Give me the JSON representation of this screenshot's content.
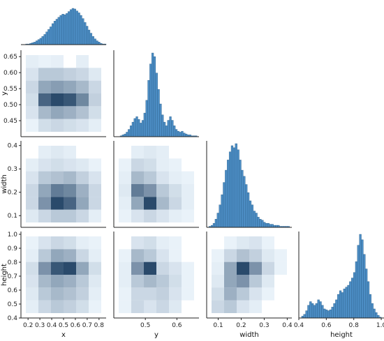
{
  "chart_data": {
    "type": "pairplot",
    "variables": [
      "x",
      "y",
      "width",
      "height"
    ],
    "colors": {
      "bar_fill": "#4c8dc4",
      "bar_edge": "#2b5f8a",
      "heat_low": "#cfe4f7",
      "heat_high": "#2a4a6b"
    },
    "grid": false,
    "axes": {
      "x": {
        "label": "x",
        "lim": [
          0.14,
          0.86
        ],
        "ticks": [
          "0.2",
          "0.3",
          "0.4",
          "0.5",
          "0.6",
          "0.7",
          "0.8"
        ]
      },
      "y": {
        "label": "y",
        "lim": [
          0.4,
          0.67
        ],
        "ticks": [
          "0.45",
          "0.50",
          "0.55",
          "0.60",
          "0.65"
        ],
        "x_ticks": [
          "0.5",
          "0.6"
        ]
      },
      "width": {
        "label": "width",
        "lim": [
          0.05,
          0.42
        ],
        "ticks": [
          "0.1",
          "0.2",
          "0.3",
          "0.4"
        ]
      },
      "height": {
        "label": "height",
        "lim": [
          0.4,
          1.02
        ],
        "ticks": [
          "0.4",
          "0.5",
          "0.6",
          "0.7",
          "0.8",
          "0.9",
          "1.0"
        ],
        "x_ticks": [
          "0.4",
          "0.6",
          "0.8",
          "1.0"
        ]
      }
    },
    "histograms": {
      "x": {
        "bins": [
          0.18,
          0.86
        ],
        "counts": [
          1,
          1,
          2,
          3,
          4,
          6,
          8,
          10,
          13,
          16,
          20,
          24,
          28,
          33,
          37,
          40,
          43,
          46,
          48,
          47,
          49,
          52,
          55,
          57,
          56,
          53,
          50,
          46,
          41,
          35,
          29,
          23,
          18,
          13,
          9,
          6,
          4,
          2,
          1,
          1
        ]
      },
      "y": {
        "bins": [
          0.42,
          0.67
        ],
        "counts": [
          1,
          2,
          3,
          5,
          8,
          12,
          16,
          20,
          22,
          19,
          15,
          18,
          26,
          40,
          62,
          80,
          92,
          88,
          70,
          52,
          36,
          24,
          16,
          12,
          18,
          22,
          18,
          12,
          8,
          6,
          5,
          6,
          4,
          3,
          2,
          2,
          1,
          1,
          1,
          0
        ]
      },
      "width": {
        "bins": [
          0.06,
          0.41
        ],
        "counts": [
          1,
          2,
          4,
          8,
          14,
          22,
          32,
          44,
          56,
          66,
          74,
          80,
          78,
          82,
          76,
          66,
          56,
          50,
          42,
          34,
          26,
          22,
          16,
          14,
          10,
          8,
          7,
          5,
          4,
          4,
          3,
          3,
          2,
          2,
          2,
          1,
          1,
          1,
          1,
          1
        ]
      },
      "height": {
        "bins": [
          0.42,
          1.0
        ],
        "counts": [
          2,
          4,
          8,
          14,
          18,
          16,
          14,
          16,
          20,
          18,
          14,
          10,
          9,
          8,
          9,
          12,
          16,
          20,
          26,
          30,
          28,
          32,
          34,
          36,
          40,
          44,
          50,
          62,
          80,
          92,
          86,
          70,
          54,
          40,
          26,
          16,
          10,
          6,
          3,
          1
        ]
      }
    },
    "pairs": [
      {
        "x": "x",
        "y": "y",
        "density": [
          [
            0.1,
            0.05,
            0.08,
            0.0,
            0.1,
            0.0
          ],
          [
            0.2,
            0.4,
            0.4,
            0.35,
            0.3,
            0.15
          ],
          [
            0.3,
            0.6,
            0.65,
            0.6,
            0.5,
            0.3
          ],
          [
            0.25,
            0.9,
            1.0,
            0.95,
            0.75,
            0.35
          ],
          [
            0.2,
            0.5,
            0.6,
            0.55,
            0.45,
            0.25
          ],
          [
            0.05,
            0.25,
            0.3,
            0.25,
            0.2,
            0.1
          ]
        ]
      },
      {
        "x": "x",
        "y": "width",
        "density": [
          [
            0.0,
            0.1,
            0.15,
            0.1,
            0.0,
            0.0
          ],
          [
            0.1,
            0.2,
            0.25,
            0.2,
            0.15,
            0.05
          ],
          [
            0.2,
            0.4,
            0.45,
            0.5,
            0.35,
            0.2
          ],
          [
            0.3,
            0.6,
            0.8,
            0.75,
            0.55,
            0.3
          ],
          [
            0.3,
            0.7,
            1.0,
            0.9,
            0.6,
            0.3
          ],
          [
            0.15,
            0.3,
            0.4,
            0.4,
            0.3,
            0.1
          ]
        ]
      },
      {
        "x": "y",
        "y": "width",
        "density": [
          [
            0.0,
            0.1,
            0.15,
            0.1,
            0.0,
            0.0
          ],
          [
            0.05,
            0.3,
            0.25,
            0.1,
            0.05,
            0.0
          ],
          [
            0.1,
            0.5,
            0.4,
            0.2,
            0.1,
            0.05
          ],
          [
            0.15,
            0.8,
            0.7,
            0.4,
            0.25,
            0.1
          ],
          [
            0.1,
            0.6,
            1.0,
            0.5,
            0.3,
            0.1
          ],
          [
            0.05,
            0.2,
            0.3,
            0.2,
            0.1,
            0.05
          ]
        ]
      },
      {
        "x": "x",
        "y": "height",
        "density": [
          [
            0.05,
            0.2,
            0.3,
            0.25,
            0.1,
            0.05
          ],
          [
            0.1,
            0.4,
            0.6,
            0.55,
            0.3,
            0.1
          ],
          [
            0.25,
            0.7,
            0.95,
            1.0,
            0.6,
            0.25
          ],
          [
            0.2,
            0.5,
            0.6,
            0.55,
            0.4,
            0.15
          ],
          [
            0.15,
            0.4,
            0.5,
            0.45,
            0.35,
            0.1
          ],
          [
            0.1,
            0.3,
            0.4,
            0.35,
            0.25,
            0.05
          ]
        ]
      },
      {
        "x": "y",
        "y": "height",
        "density": [
          [
            0.0,
            0.2,
            0.25,
            0.1,
            0.05,
            0.0
          ],
          [
            0.05,
            0.5,
            0.4,
            0.2,
            0.05,
            0.0
          ],
          [
            0.1,
            0.7,
            1.0,
            0.3,
            0.2,
            0.05
          ],
          [
            0.1,
            0.4,
            0.5,
            0.4,
            0.25,
            0.05
          ],
          [
            0.05,
            0.3,
            0.3,
            0.35,
            0.2,
            0.05
          ],
          [
            0.05,
            0.3,
            0.2,
            0.3,
            0.15,
            0.0
          ]
        ]
      },
      {
        "x": "width",
        "y": "height",
        "density": [
          [
            0.0,
            0.05,
            0.15,
            0.2,
            0.05,
            0.0
          ],
          [
            0.05,
            0.3,
            0.45,
            0.35,
            0.15,
            0.05
          ],
          [
            0.1,
            0.6,
            1.0,
            0.7,
            0.3,
            0.05
          ],
          [
            0.15,
            0.6,
            0.7,
            0.4,
            0.15,
            0.0
          ],
          [
            0.25,
            0.55,
            0.4,
            0.2,
            0.05,
            0.0
          ],
          [
            0.3,
            0.4,
            0.2,
            0.1,
            0.0,
            0.0
          ]
        ]
      }
    ]
  }
}
